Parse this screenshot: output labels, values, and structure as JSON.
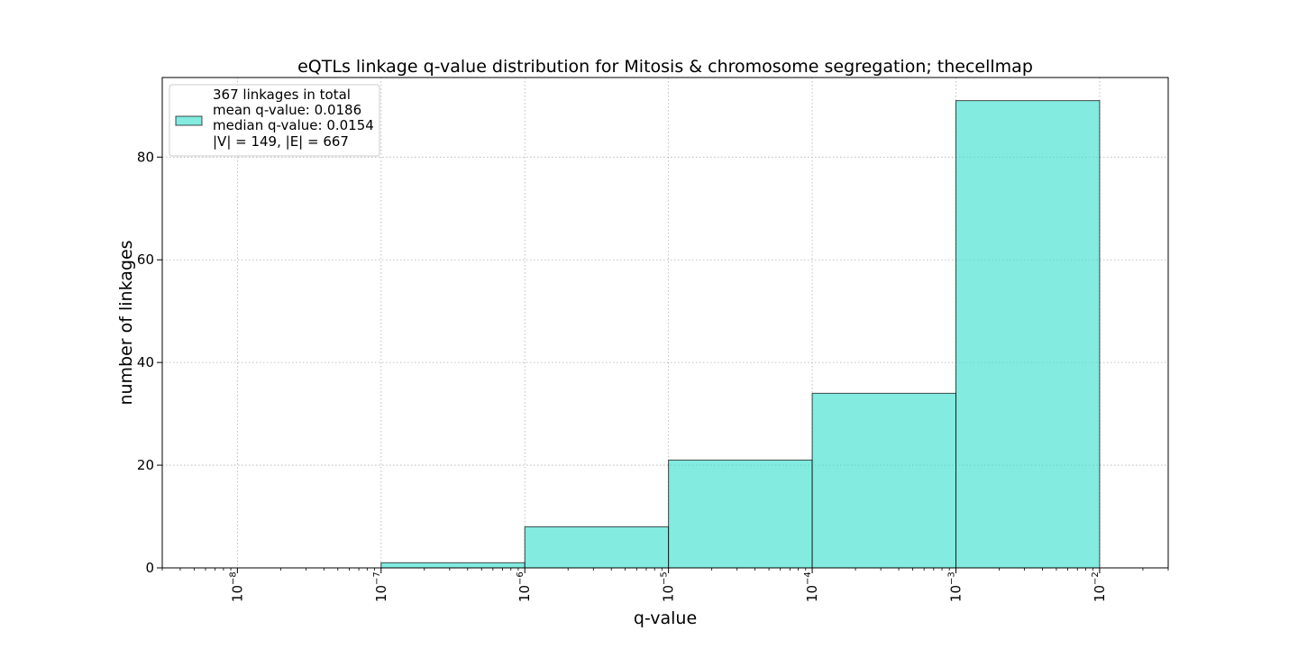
{
  "chart_data": {
    "type": "bar",
    "title": "eQTLs linkage q-value distribution for Mitosis & chromosome segregation; thecellmap",
    "xlabel": "q-value",
    "ylabel": "number of linkages",
    "x_scale": "log",
    "xlim": [
      3e-09,
      0.03
    ],
    "ylim": [
      0,
      95.5
    ],
    "grid": true,
    "bar_color": "#40E0D0",
    "bar_edge_color": "#000000",
    "bins": [
      {
        "x0": 1e-07,
        "x1": 1e-06,
        "value": 1
      },
      {
        "x0": 1e-06,
        "x1": 1e-05,
        "value": 8
      },
      {
        "x0": 1e-05,
        "x1": 0.0001,
        "value": 21
      },
      {
        "x0": 0.0001,
        "x1": 0.001,
        "value": 34
      },
      {
        "x0": 0.001,
        "x1": 0.01,
        "value": 91
      }
    ],
    "x_ticks": [
      {
        "value": 1e-08,
        "base": "10",
        "exp": "−8"
      },
      {
        "value": 1e-07,
        "base": "10",
        "exp": "−7"
      },
      {
        "value": 1e-06,
        "base": "10",
        "exp": "−6"
      },
      {
        "value": 1e-05,
        "base": "10",
        "exp": "−5"
      },
      {
        "value": 0.0001,
        "base": "10",
        "exp": "−4"
      },
      {
        "value": 0.001,
        "base": "10",
        "exp": "−3"
      },
      {
        "value": 0.01,
        "base": "10",
        "exp": "−2"
      }
    ],
    "y_ticks": [
      {
        "value": 0,
        "label": "0"
      },
      {
        "value": 20,
        "label": "20"
      },
      {
        "value": 40,
        "label": "40"
      },
      {
        "value": 60,
        "label": "60"
      },
      {
        "value": 80,
        "label": "80"
      }
    ],
    "legend": {
      "placement": "top-left",
      "lines": [
        "367 linkages in total",
        "mean q-value: 0.0186",
        "median q-value: 0.0154",
        "|V| = 149, |E| = 667"
      ]
    }
  }
}
